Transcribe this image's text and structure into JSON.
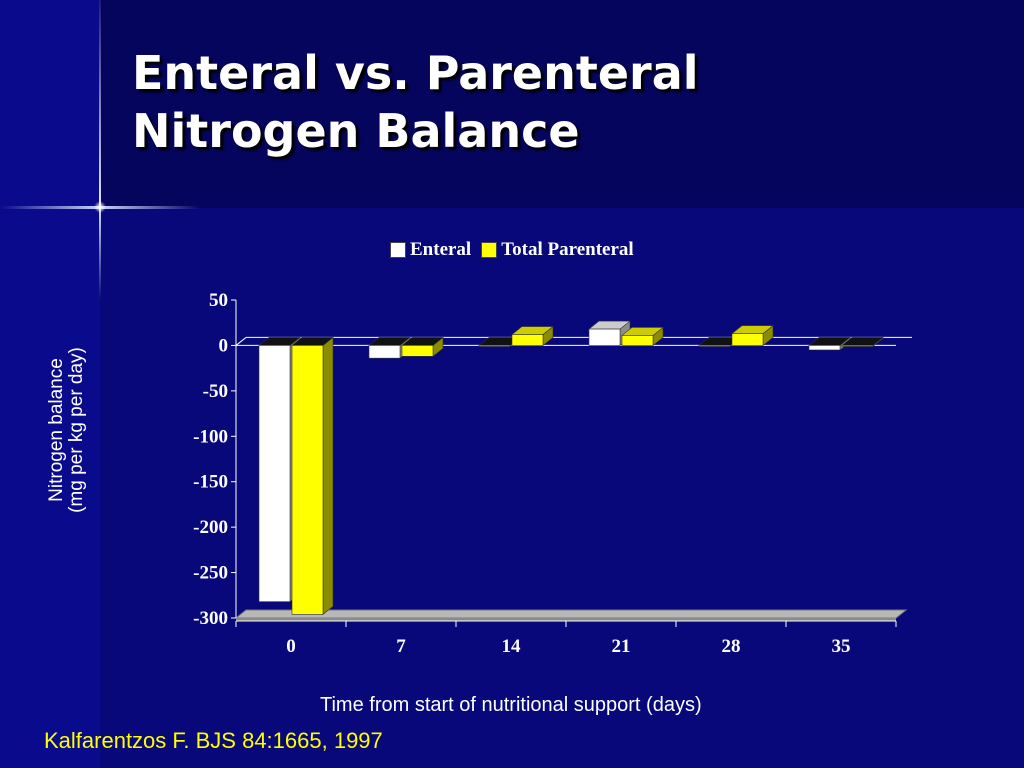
{
  "slide": {
    "title_lines": [
      "Enteral vs. Parenteral",
      "Nitrogen Balance"
    ],
    "citation": "Kalfarentzos F. BJS 84:1665, 1997"
  },
  "chart_data": {
    "type": "bar",
    "style": "3d-clustered",
    "categories": [
      "0",
      "7",
      "14",
      "21",
      "28",
      "35"
    ],
    "series": [
      {
        "name": "Enteral",
        "values": [
          -282,
          -14,
          -1,
          18,
          -1,
          -5
        ],
        "color": "#ffffff"
      },
      {
        "name": "Total Parenteral",
        "values": [
          -296,
          -12,
          12,
          11,
          13,
          -1
        ],
        "color": "#ffff00"
      }
    ],
    "ylabel_lines": [
      "Nitrogen balance",
      "(mg per kg per day)"
    ],
    "xlabel": "Time from start of nutritional support (days)",
    "ylim": [
      -300,
      50
    ],
    "yticks": [
      50,
      0,
      -50,
      -100,
      -150,
      -200,
      -250,
      -300
    ],
    "legend_position": "top",
    "grid": false
  }
}
